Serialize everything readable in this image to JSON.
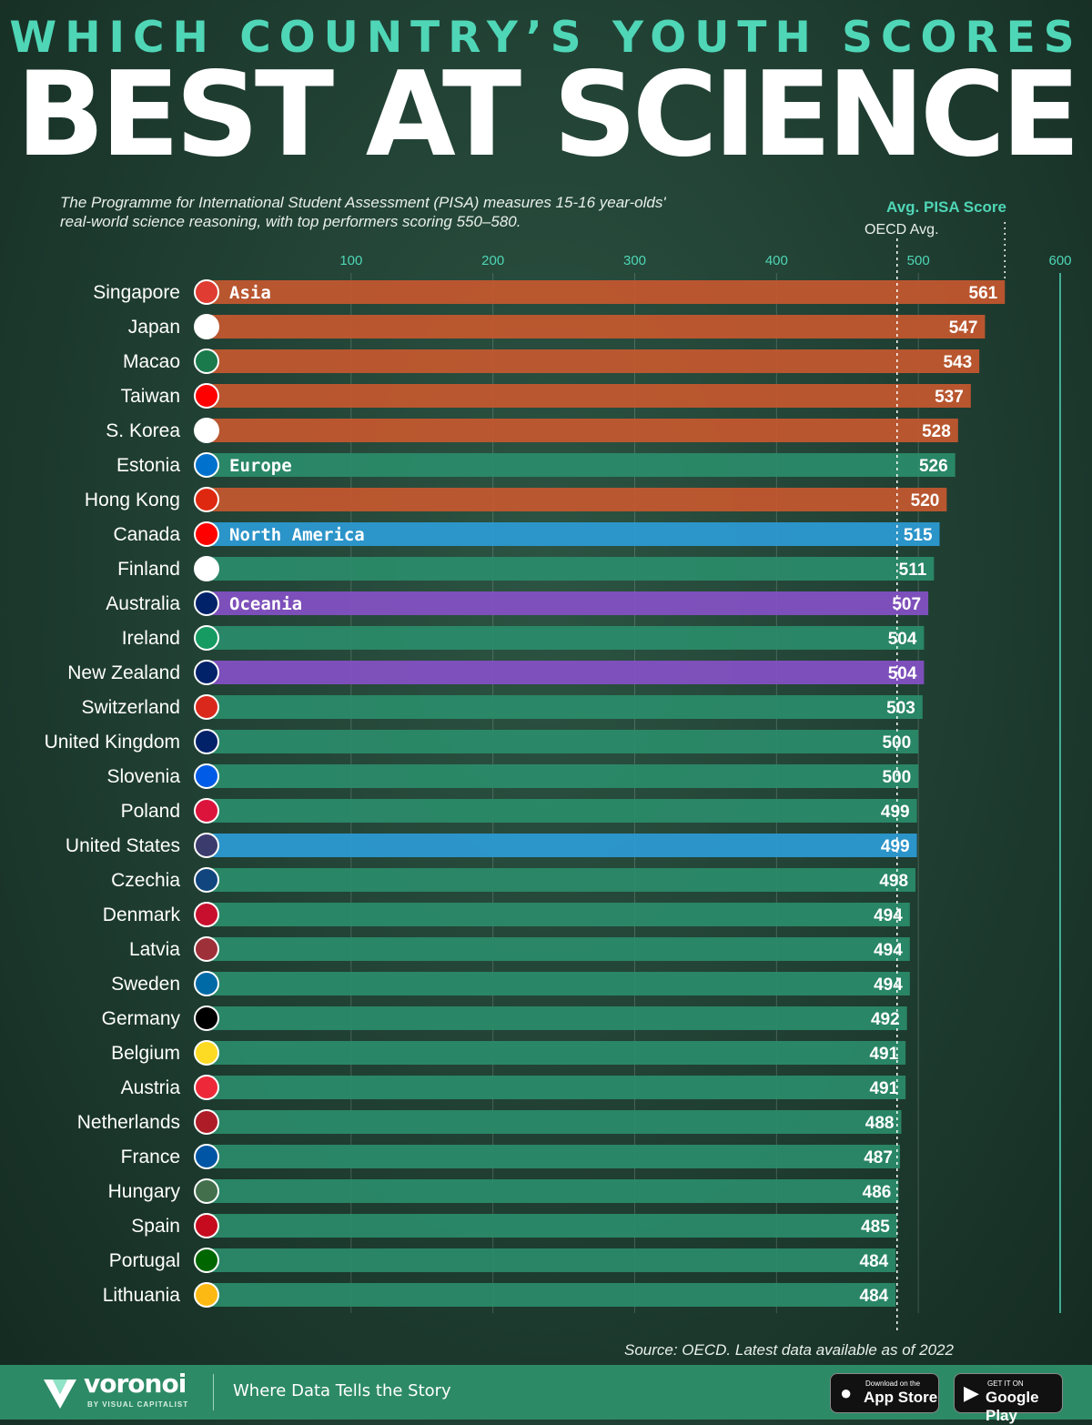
{
  "title": {
    "top": "WHICH COUNTRY’S YOUTH SCORES",
    "main": "BEST AT SCIENCE"
  },
  "subtitle": "The Programme for International Student Assessment (PISA) measures 15-16 year-olds' real-world science reasoning, with top performers scoring 550–580.",
  "source": "Source: OECD. Latest data available  as of 2022",
  "footer": {
    "brand": "voronoi",
    "brand_sub": "BY VISUAL CAPITALIST",
    "tagline": "Where Data Tells the Story",
    "app_store_small": "Download on the",
    "app_store_big": "App Store",
    "google_small": "GET IT ON",
    "google_big": "Google Play"
  },
  "colors": {
    "Asia": "#c5582f",
    "Europe": "#2a8c6a",
    "North America": "#2c9bd6",
    "Oceania": "#8450c6",
    "accent": "#4fd6b6"
  },
  "chart_data": {
    "type": "bar",
    "orientation": "horizontal",
    "xlabel": "Avg. PISA Score",
    "reference_line": {
      "label": "OECD Avg.",
      "value": 485
    },
    "top_performer_line": {
      "value": 561
    },
    "xticks": [
      100,
      200,
      300,
      400,
      500,
      600
    ],
    "xlim": [
      0,
      600
    ],
    "legend_labels": [
      {
        "region": "Asia",
        "row": 0
      },
      {
        "region": "Europe",
        "row": 5
      },
      {
        "region": "North America",
        "row": 7
      },
      {
        "region": "Oceania",
        "row": 9
      }
    ],
    "categories": [
      "Singapore",
      "Japan",
      "Macao",
      "Taiwan",
      "S. Korea",
      "Estonia",
      "Hong Kong",
      "Canada",
      "Finland",
      "Australia",
      "Ireland",
      "New Zealand",
      "Switzerland",
      "United Kingdom",
      "Slovenia",
      "Poland",
      "United States",
      "Czechia",
      "Denmark",
      "Latvia",
      "Sweden",
      "Germany",
      "Belgium",
      "Austria",
      "Netherlands",
      "France",
      "Hungary",
      "Spain",
      "Portugal",
      "Lithuania"
    ],
    "values": [
      561,
      547,
      543,
      537,
      528,
      526,
      520,
      515,
      511,
      507,
      504,
      504,
      503,
      500,
      500,
      499,
      499,
      498,
      494,
      494,
      494,
      492,
      491,
      491,
      488,
      487,
      486,
      485,
      484,
      484
    ],
    "regions": [
      "Asia",
      "Asia",
      "Asia",
      "Asia",
      "Asia",
      "Europe",
      "Asia",
      "North America",
      "Europe",
      "Oceania",
      "Europe",
      "Oceania",
      "Europe",
      "Europe",
      "Europe",
      "Europe",
      "North America",
      "Europe",
      "Europe",
      "Europe",
      "Europe",
      "Europe",
      "Europe",
      "Europe",
      "Europe",
      "Europe",
      "Europe",
      "Europe",
      "Europe",
      "Europe"
    ],
    "flag_icons": [
      "singapore-flag-icon",
      "japan-flag-icon",
      "macao-flag-icon",
      "taiwan-flag-icon",
      "south-korea-flag-icon",
      "estonia-flag-icon",
      "hong-kong-flag-icon",
      "canada-flag-icon",
      "finland-flag-icon",
      "australia-flag-icon",
      "ireland-flag-icon",
      "new-zealand-flag-icon",
      "switzerland-flag-icon",
      "united-kingdom-flag-icon",
      "slovenia-flag-icon",
      "poland-flag-icon",
      "united-states-flag-icon",
      "czechia-flag-icon",
      "denmark-flag-icon",
      "latvia-flag-icon",
      "sweden-flag-icon",
      "germany-flag-icon",
      "belgium-flag-icon",
      "austria-flag-icon",
      "netherlands-flag-icon",
      "france-flag-icon",
      "hungary-flag-icon",
      "spain-flag-icon",
      "portugal-flag-icon",
      "lithuania-flag-icon"
    ]
  }
}
